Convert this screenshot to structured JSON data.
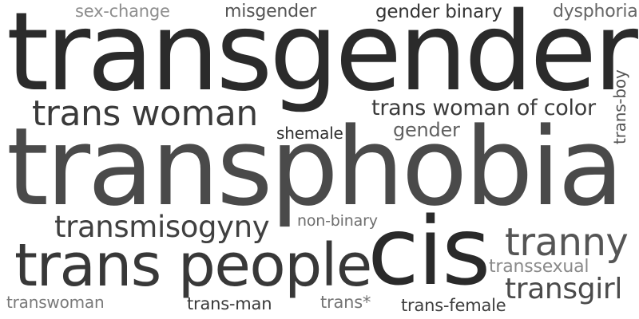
{
  "words": {
    "transgender": {
      "text": "transgender",
      "color": "#2b2b2b"
    },
    "transphobia": {
      "text": "transphobia",
      "color": "#4a4a4a"
    },
    "cis": {
      "text": "cis",
      "color": "#2a2a2a"
    },
    "trans_people": {
      "text": "trans people",
      "color": "#383838"
    },
    "trans_woman": {
      "text": "trans woman",
      "color": "#3a3a3a"
    },
    "tranny": {
      "text": "tranny",
      "color": "#555555"
    },
    "transgirl": {
      "text": "transgirl",
      "color": "#4b4b4b"
    },
    "transmisogyny": {
      "text": "transmisogyny",
      "color": "#404040"
    },
    "trans_woman_of_color": {
      "text": "trans woman of color",
      "color": "#3b3b3b"
    },
    "gender": {
      "text": "gender",
      "color": "#606060"
    },
    "shemale": {
      "text": "shemale",
      "color": "#303030"
    },
    "non_binary": {
      "text": "non-binary",
      "color": "#6e6e6e"
    },
    "trans_boy": {
      "text": "trans-boy",
      "color": "#555555"
    },
    "sex_change": {
      "text": "sex-change",
      "color": "#8e8e8e"
    },
    "misgender": {
      "text": "misgender",
      "color": "#555555"
    },
    "gender_binary": {
      "text": "gender binary",
      "color": "#333333"
    },
    "dysphoria": {
      "text": "dysphoria",
      "color": "#666666"
    },
    "transsexual": {
      "text": "transsexual",
      "color": "#8a8a8a"
    },
    "transwoman": {
      "text": "transwoman",
      "color": "#7a7a7a"
    },
    "trans_man": {
      "text": "trans-man",
      "color": "#3a3a3a"
    },
    "trans_star": {
      "text": "trans*",
      "color": "#757575"
    },
    "trans_female": {
      "text": "trans-female",
      "color": "#3e3e3e"
    }
  }
}
